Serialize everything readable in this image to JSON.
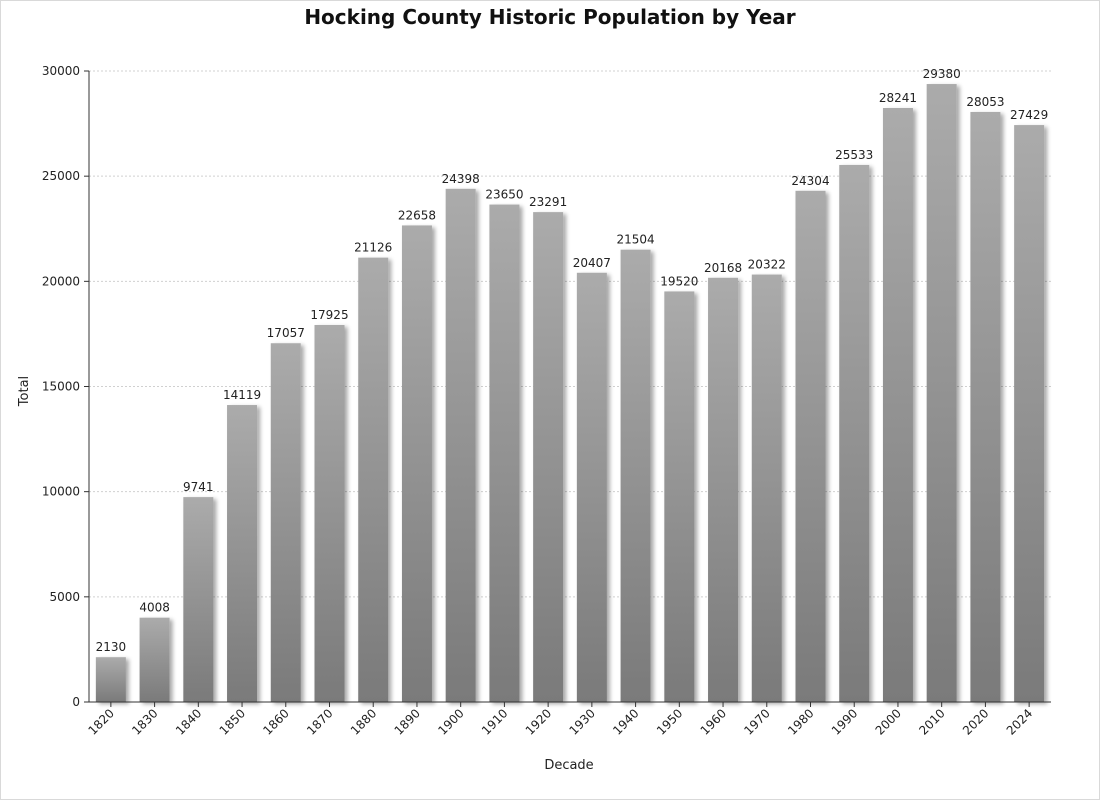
{
  "chart_data": {
    "type": "bar",
    "title": "Hocking County Historic Population by Year",
    "xlabel": "Decade",
    "ylabel": "Total",
    "ylim": [
      0,
      30000
    ],
    "yticks": [
      0,
      5000,
      10000,
      15000,
      20000,
      25000,
      30000
    ],
    "grid": true,
    "legend": "none",
    "categories": [
      "1820",
      "1830",
      "1840",
      "1850",
      "1860",
      "1870",
      "1880",
      "1890",
      "1900",
      "1910",
      "1920",
      "1930",
      "1940",
      "1950",
      "1960",
      "1970",
      "1980",
      "1990",
      "2000",
      "2010",
      "2020",
      "2024"
    ],
    "values": [
      2130,
      4008,
      9741,
      14119,
      17057,
      17925,
      21126,
      22658,
      24398,
      23650,
      23291,
      20407,
      21504,
      19520,
      20168,
      20322,
      24304,
      25533,
      28241,
      29380,
      28053,
      27429
    ],
    "colors": {
      "bar_top": "#ababab",
      "bar_bottom": "#7a7a7a",
      "shadow": "#b0b0b0",
      "grid": "#d0d0d0",
      "axis": "#333333"
    }
  }
}
